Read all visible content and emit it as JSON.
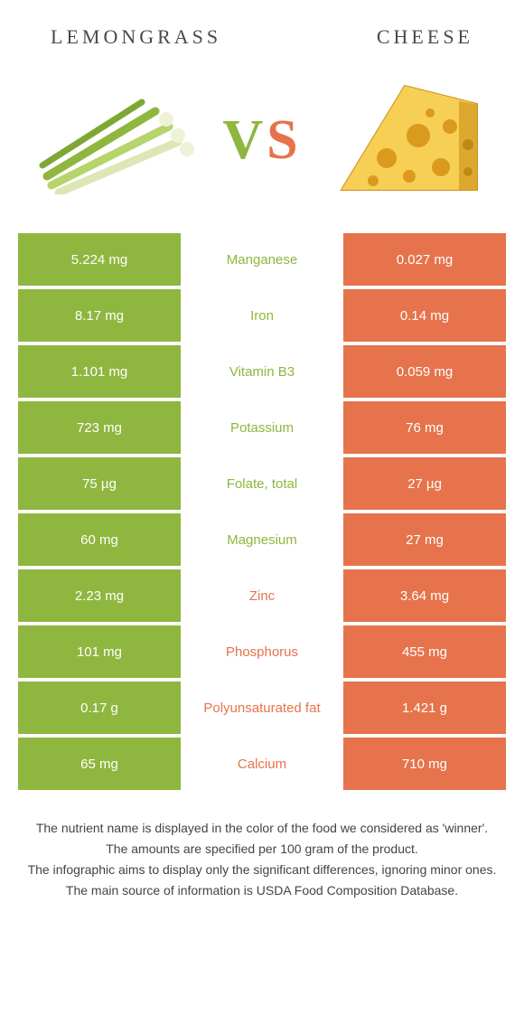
{
  "colors": {
    "green": "#8fb63f",
    "orange": "#e6734b",
    "text_light": "#ffffff",
    "heading": "#4a4a4a",
    "notes": "#444444"
  },
  "header": {
    "left": "LEMONGRASS",
    "right": "CHEESE"
  },
  "vs": {
    "v": "V",
    "s": "S"
  },
  "rows": [
    {
      "left": "5.224 mg",
      "label": "Manganese",
      "right": "0.027 mg",
      "winner": "left"
    },
    {
      "left": "8.17 mg",
      "label": "Iron",
      "right": "0.14 mg",
      "winner": "left"
    },
    {
      "left": "1.101 mg",
      "label": "Vitamin B3",
      "right": "0.059 mg",
      "winner": "left"
    },
    {
      "left": "723 mg",
      "label": "Potassium",
      "right": "76 mg",
      "winner": "left"
    },
    {
      "left": "75 µg",
      "label": "Folate, total",
      "right": "27 µg",
      "winner": "left"
    },
    {
      "left": "60 mg",
      "label": "Magnesium",
      "right": "27 mg",
      "winner": "left"
    },
    {
      "left": "2.23 mg",
      "label": "Zinc",
      "right": "3.64 mg",
      "winner": "right"
    },
    {
      "left": "101 mg",
      "label": "Phosphorus",
      "right": "455 mg",
      "winner": "right"
    },
    {
      "left": "0.17 g",
      "label": "Polyunsaturated fat",
      "right": "1.421 g",
      "winner": "right"
    },
    {
      "left": "65 mg",
      "label": "Calcium",
      "right": "710 mg",
      "winner": "right"
    }
  ],
  "notes": {
    "l1": "The nutrient name is displayed in the color of the food we considered as 'winner'.",
    "l2": "The amounts are specified per 100 gram of the product.",
    "l3": "The infographic aims to display only the significant differences, ignoring minor ones.",
    "l4": "The main source of information is USDA Food Composition Database."
  }
}
